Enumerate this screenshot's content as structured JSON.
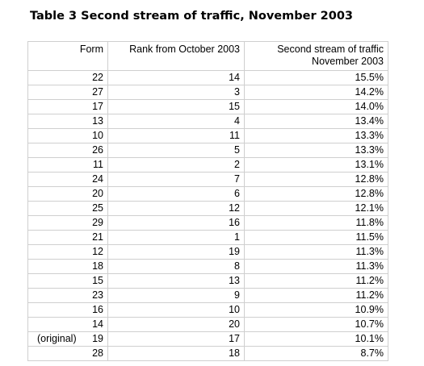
{
  "title": "Table 3 Second stream of traffic, November 2003",
  "table": {
    "header": {
      "form": "Form",
      "rank": "Rank from October 2003",
      "share": [
        "Second stream of traffic",
        "November 2003"
      ]
    },
    "rows": [
      {
        "form": "22",
        "rank": "14",
        "share": "15.5%"
      },
      {
        "form": "27",
        "rank": "3",
        "share": "14.2%"
      },
      {
        "form": "17",
        "rank": "15",
        "share": "14.0%"
      },
      {
        "form": "13",
        "rank": "4",
        "share": "13.4%"
      },
      {
        "form": "10",
        "rank": "11",
        "share": "13.3%"
      },
      {
        "form": "26",
        "rank": "5",
        "share": "13.3%"
      },
      {
        "form": "11",
        "rank": "2",
        "share": "13.1%"
      },
      {
        "form": "24",
        "rank": "7",
        "share": "12.8%"
      },
      {
        "form": "20",
        "rank": "6",
        "share": "12.8%"
      },
      {
        "form": "25",
        "rank": "12",
        "share": "12.1%"
      },
      {
        "form": "29",
        "rank": "16",
        "share": "11.8%"
      },
      {
        "form": "21",
        "rank": "1",
        "share": "11.5%"
      },
      {
        "form": "12",
        "rank": "19",
        "share": "11.3%"
      },
      {
        "form": "18",
        "rank": "8",
        "share": "11.3%"
      },
      {
        "form": "15",
        "rank": "13",
        "share": "11.2%"
      },
      {
        "form": "23",
        "rank": "9",
        "share": "11.2%"
      },
      {
        "form": "16",
        "rank": "10",
        "share": "10.9%"
      },
      {
        "form": "14",
        "rank": "20",
        "share": "10.7%"
      },
      {
        "note": "(original)",
        "form": "19",
        "rank": "17",
        "share": "10.1%"
      },
      {
        "form": "28",
        "rank": "18",
        "share": "8.7%"
      }
    ]
  }
}
